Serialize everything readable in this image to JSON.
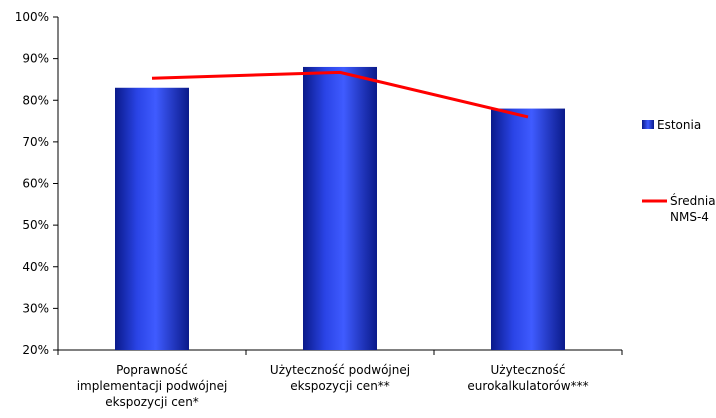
{
  "chart_data": {
    "type": "bar",
    "categories": [
      [
        "Poprawność",
        "implementacji podwójnej",
        "ekspozycji cen*"
      ],
      [
        "Użyteczność podwójnej",
        "ekspozycji cen**"
      ],
      [
        "Użyteczność",
        "eurokalkulatorów***"
      ]
    ],
    "series": [
      {
        "name": "Estonia",
        "kind": "bar",
        "values": [
          83,
          88,
          78
        ],
        "color": "#2a3bd9"
      },
      {
        "name": [
          "Średnia",
          "NMS-4"
        ],
        "kind": "line",
        "values": [
          85.3,
          86.7,
          76.0
        ],
        "color": "#ff0000"
      }
    ],
    "ylim": [
      20,
      100
    ],
    "yticks": [
      20,
      30,
      40,
      50,
      60,
      70,
      80,
      90,
      100
    ],
    "ytick_suffix": "%",
    "grid": false,
    "legend_position": "right",
    "title": "",
    "xlabel": "",
    "ylabel": ""
  }
}
